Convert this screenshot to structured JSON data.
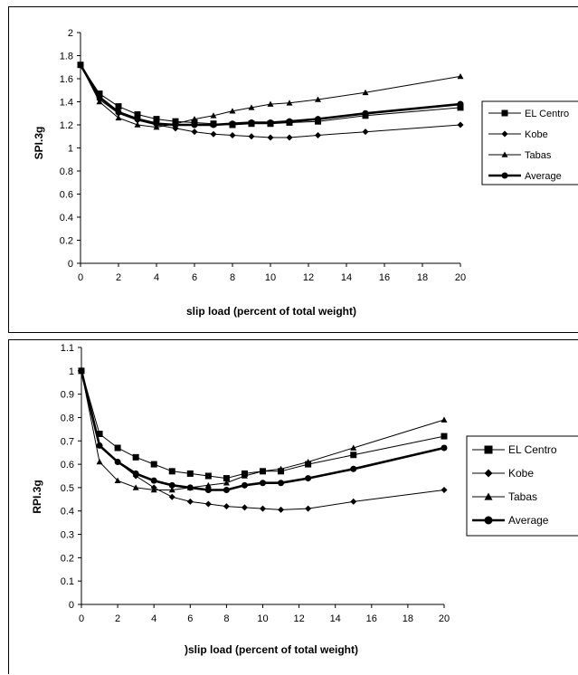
{
  "chart_data": [
    {
      "type": "line",
      "title": "",
      "xlabel": "slip load (percent of total weight)",
      "ylabel": "SPI.3g",
      "xlim": [
        0,
        20
      ],
      "ylim": [
        0,
        2
      ],
      "x_ticks": [
        "0",
        "2",
        "4",
        "6",
        "8",
        "10",
        "12",
        "14",
        "16",
        "18",
        "20"
      ],
      "y_ticks": [
        "0",
        "0.2",
        "0.4",
        "0.6",
        "0.8",
        "1",
        "1.2",
        "1.4",
        "1.6",
        "1.8",
        "2"
      ],
      "grid": false,
      "legend_position": "right",
      "series": [
        {
          "name": "EL Centro",
          "marker": "square",
          "bold": false,
          "x": [
            0,
            1,
            2,
            3,
            4,
            5,
            6,
            7,
            8,
            9,
            10,
            11,
            12.5,
            15,
            20
          ],
          "y": [
            1.72,
            1.47,
            1.36,
            1.29,
            1.25,
            1.23,
            1.22,
            1.21,
            1.2,
            1.21,
            1.21,
            1.22,
            1.23,
            1.28,
            1.35
          ]
        },
        {
          "name": "Kobe",
          "marker": "diamond",
          "bold": false,
          "x": [
            0,
            1,
            2,
            3,
            4,
            5,
            6,
            7,
            8,
            9,
            10,
            11,
            12.5,
            15,
            20
          ],
          "y": [
            1.72,
            1.42,
            1.3,
            1.24,
            1.2,
            1.17,
            1.14,
            1.12,
            1.11,
            1.1,
            1.09,
            1.09,
            1.11,
            1.14,
            1.2
          ]
        },
        {
          "name": "Tabas",
          "marker": "triangle",
          "bold": false,
          "x": [
            0,
            1,
            2,
            3,
            4,
            5,
            6,
            7,
            8,
            9,
            10,
            11,
            12.5,
            15,
            20
          ],
          "y": [
            1.72,
            1.4,
            1.26,
            1.2,
            1.18,
            1.21,
            1.25,
            1.28,
            1.32,
            1.35,
            1.38,
            1.39,
            1.42,
            1.48,
            1.62
          ]
        },
        {
          "name": "Average",
          "marker": "circle",
          "bold": true,
          "x": [
            0,
            1,
            2,
            3,
            4,
            5,
            6,
            7,
            8,
            9,
            10,
            11,
            12.5,
            15,
            20
          ],
          "y": [
            1.72,
            1.44,
            1.31,
            1.25,
            1.21,
            1.2,
            1.2,
            1.2,
            1.21,
            1.22,
            1.22,
            1.23,
            1.25,
            1.3,
            1.38
          ]
        }
      ]
    },
    {
      "type": "line",
      "title": "",
      "xlabel": ")slip load (percent of total weight)",
      "ylabel": "RPI.3g",
      "xlim": [
        0,
        20
      ],
      "ylim": [
        0,
        1.1
      ],
      "x_ticks": [
        "0",
        "2",
        "4",
        "6",
        "8",
        "10",
        "12",
        "14",
        "16",
        "18",
        "20"
      ],
      "y_ticks": [
        "0",
        "0.1",
        "0.2",
        "0.3",
        "0.4",
        "0.5",
        "0.6",
        "0.7",
        "0.8",
        "0.9",
        "1",
        "1.1"
      ],
      "grid": false,
      "legend_position": "right",
      "series": [
        {
          "name": "EL Centro",
          "marker": "square",
          "bold": false,
          "x": [
            0,
            1,
            2,
            3,
            4,
            5,
            6,
            7,
            8,
            9,
            10,
            11,
            12.5,
            15,
            20
          ],
          "y": [
            1.0,
            0.73,
            0.67,
            0.63,
            0.6,
            0.57,
            0.56,
            0.55,
            0.54,
            0.56,
            0.57,
            0.57,
            0.6,
            0.64,
            0.72
          ]
        },
        {
          "name": "Kobe",
          "marker": "diamond",
          "bold": false,
          "x": [
            0,
            1,
            2,
            3,
            4,
            5,
            6,
            7,
            8,
            9,
            10,
            11,
            12.5,
            15,
            20
          ],
          "y": [
            1.0,
            0.68,
            0.61,
            0.55,
            0.5,
            0.46,
            0.44,
            0.43,
            0.42,
            0.415,
            0.41,
            0.405,
            0.41,
            0.44,
            0.49
          ]
        },
        {
          "name": "Tabas",
          "marker": "triangle",
          "bold": false,
          "x": [
            0,
            1,
            2,
            3,
            4,
            5,
            6,
            7,
            8,
            9,
            10,
            11,
            12.5,
            15,
            20
          ],
          "y": [
            1.0,
            0.61,
            0.53,
            0.5,
            0.49,
            0.49,
            0.5,
            0.51,
            0.52,
            0.55,
            0.57,
            0.58,
            0.61,
            0.67,
            0.79
          ]
        },
        {
          "name": "Average",
          "marker": "circle",
          "bold": true,
          "x": [
            0,
            1,
            2,
            3,
            4,
            5,
            6,
            7,
            8,
            9,
            10,
            11,
            12.5,
            15,
            20
          ],
          "y": [
            1.0,
            0.68,
            0.61,
            0.56,
            0.53,
            0.51,
            0.5,
            0.49,
            0.49,
            0.51,
            0.52,
            0.52,
            0.54,
            0.58,
            0.67
          ]
        }
      ]
    }
  ]
}
